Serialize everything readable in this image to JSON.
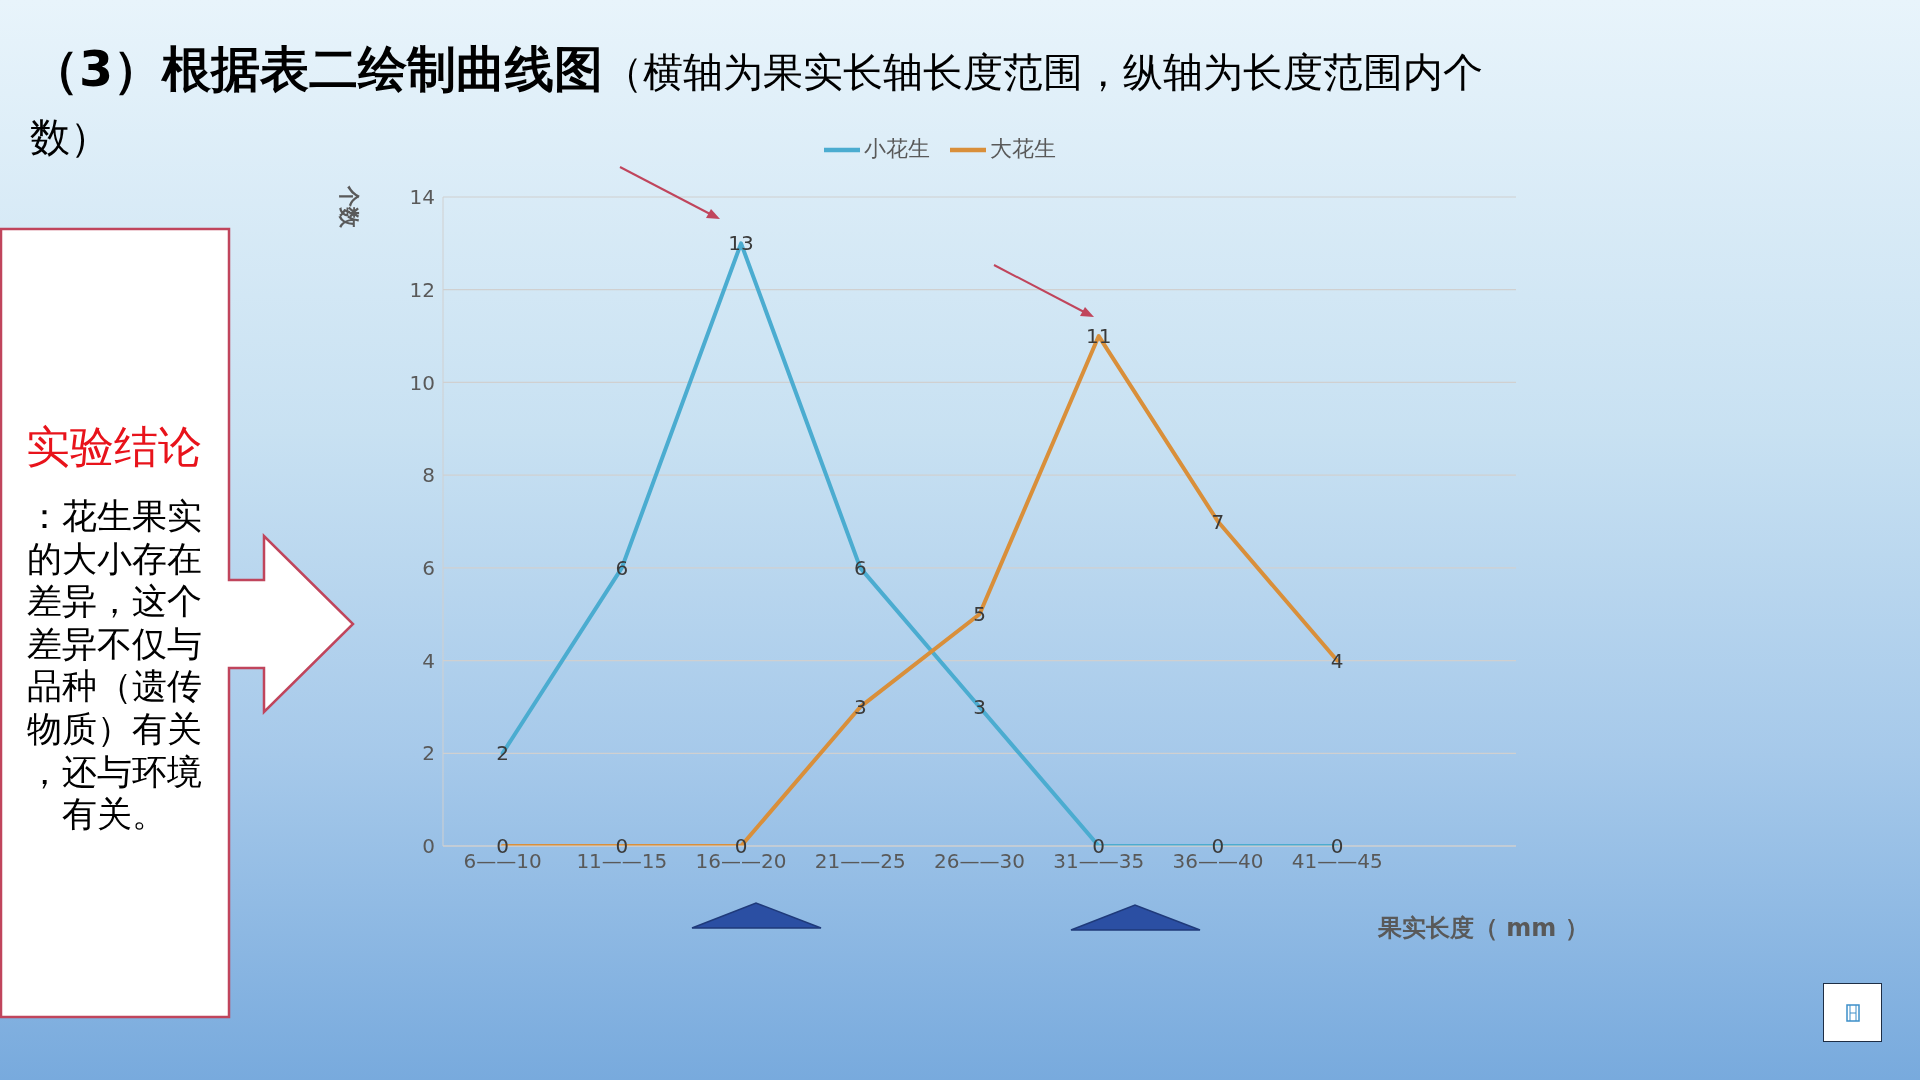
{
  "chart_data": {
    "type": "line",
    "title": "（3）根据表二绘制曲线图",
    "subtitle": "（横轴为果实长轴长度范围，纵轴为长度范围内个数）",
    "xlabel": "果实长度（ mm ）",
    "ylabel": "个数",
    "categories": [
      "6——10",
      "11——15",
      "16——20",
      "21——25",
      "26——30",
      "31——35",
      "36——40",
      "41——45",
      null
    ],
    "series": [
      {
        "name": "小花生",
        "color": "#4bacd0",
        "values": [
          2,
          6,
          13,
          6,
          3,
          0,
          0,
          0,
          null
        ]
      },
      {
        "name": "大花生",
        "color": "#d98f3a",
        "values": [
          0,
          0,
          0,
          3,
          5,
          11,
          7,
          4,
          null
        ]
      }
    ],
    "ylim": [
      0,
      14
    ],
    "yticks": [
      0,
      2,
      4,
      6,
      8,
      10,
      12,
      14
    ],
    "grid": "y",
    "legend": "top",
    "marker": "none",
    "data_labels": true,
    "annotations": [
      "实验结论",
      "：花生果实的大小存在差异，这个差异不仅与品种（遗传物质）有关，还与环境有关。"
    ]
  }
}
